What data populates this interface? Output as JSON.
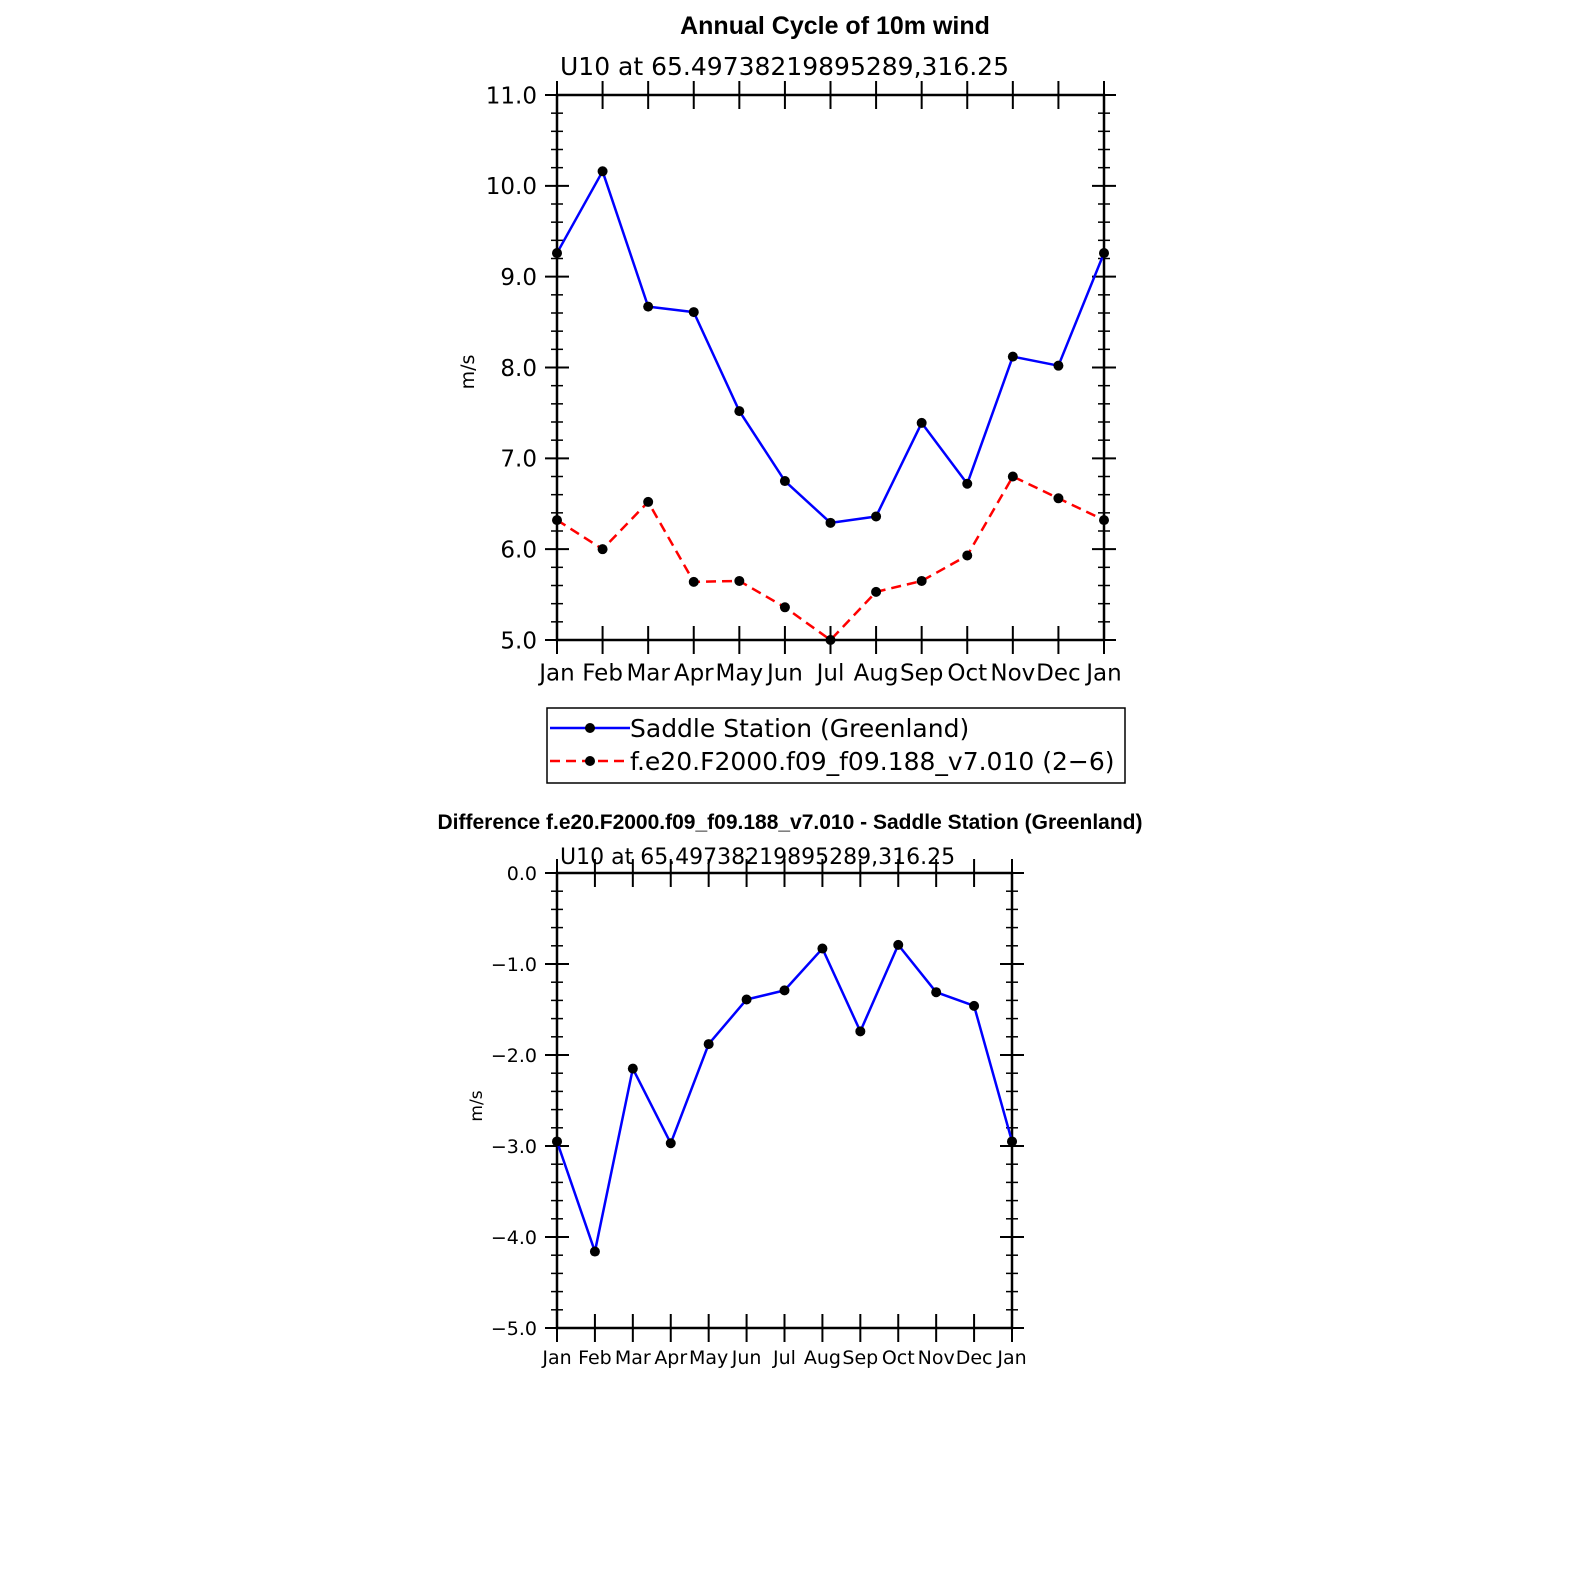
{
  "chart_data": [
    {
      "type": "line",
      "title": "Annual Cycle of 10m wind",
      "subtitle": "U10 at 65.49738219895289,316.25",
      "ylabel": "m/s",
      "xlabel": "",
      "categories": [
        "Jan",
        "Feb",
        "Mar",
        "Apr",
        "May",
        "Jun",
        "Jul",
        "Aug",
        "Sep",
        "Oct",
        "Nov",
        "Dec",
        "Jan"
      ],
      "ylim": [
        5.0,
        11.0
      ],
      "yticks": [
        "5.0",
        "6.0",
        "7.0",
        "8.0",
        "9.0",
        "10.0",
        "11.0"
      ],
      "grid": false,
      "legend_position": "bottom",
      "series": [
        {
          "name": "Saddle Station (Greenland)",
          "color": "#0000ff",
          "dash": "solid",
          "values": [
            9.26,
            10.16,
            8.67,
            8.61,
            7.52,
            6.75,
            6.29,
            6.36,
            7.39,
            6.72,
            8.12,
            8.02,
            9.26
          ]
        },
        {
          "name": "f.e20.F2000.f09_f09.188_v7.010 (2−6)",
          "color": "#ff0000",
          "dash": "dashed",
          "values": [
            6.32,
            6.0,
            6.52,
            5.64,
            5.65,
            5.36,
            5.0,
            5.53,
            5.65,
            5.93,
            6.8,
            6.56,
            6.32
          ]
        }
      ]
    },
    {
      "type": "line",
      "title": "Difference f.e20.F2000.f09_f09.188_v7.010 - Saddle Station (Greenland)",
      "subtitle": "U10 at 65.49738219895289,316.25",
      "ylabel": "m/s",
      "xlabel": "",
      "categories": [
        "Jan",
        "Feb",
        "Mar",
        "Apr",
        "May",
        "Jun",
        "Jul",
        "Aug",
        "Sep",
        "Oct",
        "Nov",
        "Dec",
        "Jan"
      ],
      "ylim": [
        -5.0,
        0.0
      ],
      "yticks": [
        "−5.0",
        "−4.0",
        "−3.0",
        "−2.0",
        "−1.0",
        "0.0"
      ],
      "grid": false,
      "series": [
        {
          "color": "#0000ff",
          "dash": "solid",
          "values": [
            -2.95,
            -4.16,
            -2.15,
            -2.97,
            -1.88,
            -1.39,
            -1.29,
            -0.83,
            -1.74,
            -0.79,
            -1.31,
            -1.46,
            -2.95
          ]
        }
      ]
    }
  ]
}
